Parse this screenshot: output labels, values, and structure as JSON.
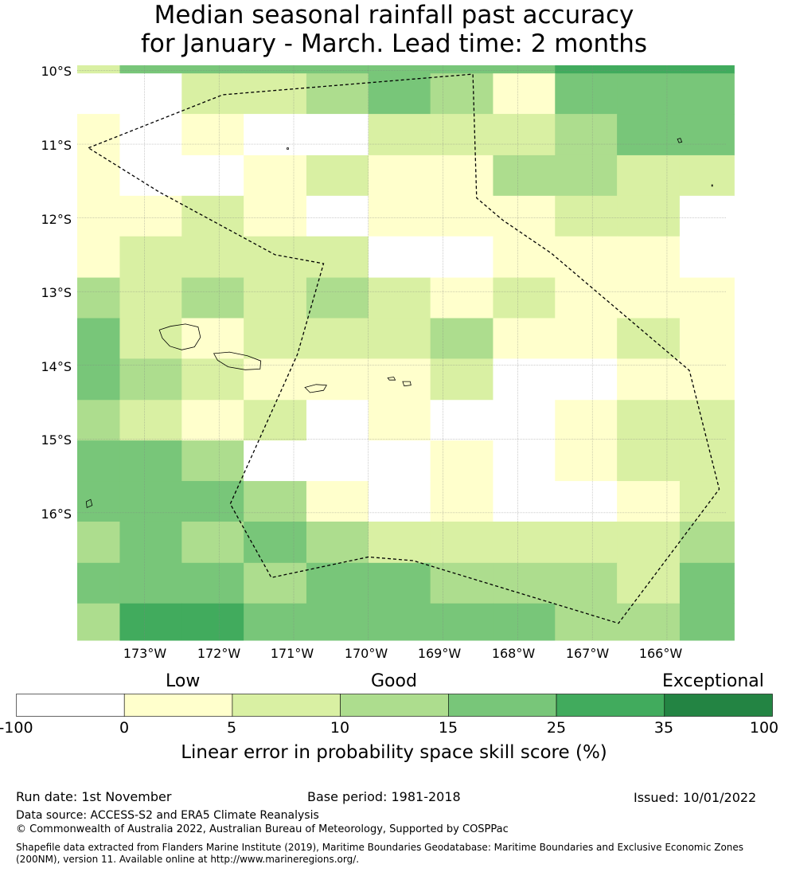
{
  "title": {
    "line1": "Median seasonal rainfall past accuracy",
    "line2": "for January - March. Lead time: 2 months"
  },
  "colors": {
    "bins": [
      "#ffffff",
      "#ffffcc",
      "#d9f0a3",
      "#addd8e",
      "#78c679",
      "#41ab5d",
      "#238443"
    ],
    "coastline": "#000000",
    "eez_boundary": "#000000",
    "gridline": "#808080"
  },
  "map": {
    "lat_labels": [
      "10°S",
      "11°S",
      "12°S",
      "13°S",
      "14°S",
      "15°S",
      "16°S"
    ],
    "lon_labels": [
      "173°W",
      "172°W",
      "171°W",
      "170°W",
      "169°W",
      "168°W",
      "167°W",
      "166°W"
    ],
    "lon_range": [
      -173.9,
      -165.2
    ],
    "lat_range": [
      -17.73,
      -9.93
    ],
    "gridlines": true,
    "eez_boundary": {
      "style": "dashed",
      "path": [
        [
          -173.75,
          -11.05
        ],
        [
          -171.95,
          -10.33
        ],
        [
          -168.6,
          -10.05
        ],
        [
          -168.55,
          -11.73
        ],
        [
          -168.2,
          -12.03
        ],
        [
          -167.55,
          -12.48
        ],
        [
          -165.7,
          -14.07
        ],
        [
          -165.3,
          -15.68
        ],
        [
          -166.65,
          -17.5
        ],
        [
          -169.4,
          -16.65
        ],
        [
          -170.0,
          -16.6
        ],
        [
          -171.3,
          -16.88
        ],
        [
          -171.85,
          -15.88
        ],
        [
          -170.95,
          -13.85
        ],
        [
          -170.6,
          -12.62
        ],
        [
          -171.25,
          -12.5
        ],
        [
          -172.8,
          -11.65
        ],
        [
          -173.75,
          -11.05
        ]
      ]
    },
    "islands": [
      {
        "name": "Savai'i",
        "path": [
          [
            -172.8,
            -13.52
          ],
          [
            -172.65,
            -13.47
          ],
          [
            -172.45,
            -13.44
          ],
          [
            -172.28,
            -13.48
          ],
          [
            -172.25,
            -13.62
          ],
          [
            -172.33,
            -13.75
          ],
          [
            -172.5,
            -13.79
          ],
          [
            -172.66,
            -13.74
          ],
          [
            -172.76,
            -13.63
          ],
          [
            -172.8,
            -13.52
          ]
        ]
      },
      {
        "name": "Upolu",
        "path": [
          [
            -172.07,
            -13.84
          ],
          [
            -171.86,
            -13.82
          ],
          [
            -171.62,
            -13.87
          ],
          [
            -171.44,
            -13.94
          ],
          [
            -171.45,
            -14.05
          ],
          [
            -171.65,
            -14.06
          ],
          [
            -171.88,
            -14.02
          ],
          [
            -172.02,
            -13.93
          ],
          [
            -172.07,
            -13.84
          ]
        ]
      },
      {
        "name": "Tutuila",
        "path": [
          [
            -170.85,
            -14.3
          ],
          [
            -170.7,
            -14.26
          ],
          [
            -170.56,
            -14.27
          ],
          [
            -170.6,
            -14.34
          ],
          [
            -170.78,
            -14.37
          ],
          [
            -170.85,
            -14.3
          ]
        ]
      },
      {
        "name": "Ofu-Olosega",
        "path": [
          [
            -169.74,
            -14.17
          ],
          [
            -169.66,
            -14.16
          ],
          [
            -169.64,
            -14.2
          ],
          [
            -169.72,
            -14.2
          ],
          [
            -169.74,
            -14.17
          ]
        ]
      },
      {
        "name": "Ta'u",
        "path": [
          [
            -169.54,
            -14.22
          ],
          [
            -169.44,
            -14.22
          ],
          [
            -169.43,
            -14.27
          ],
          [
            -169.52,
            -14.28
          ],
          [
            -169.54,
            -14.22
          ]
        ]
      },
      {
        "name": "Swains",
        "path": [
          [
            -171.09,
            -11.05
          ],
          [
            -171.07,
            -11.05
          ],
          [
            -171.07,
            -11.07
          ],
          [
            -171.09,
            -11.07
          ],
          [
            -171.09,
            -11.05
          ]
        ]
      },
      {
        "name": "Fakaofo",
        "path": [
          [
            -165.86,
            -10.93
          ],
          [
            -165.82,
            -10.92
          ],
          [
            -165.8,
            -10.97
          ],
          [
            -165.84,
            -10.98
          ],
          [
            -165.86,
            -10.93
          ]
        ]
      },
      {
        "name": "Nukunonu",
        "path": [
          [
            -165.4,
            -11.55
          ],
          [
            -165.39,
            -11.55
          ],
          [
            -165.39,
            -11.57
          ],
          [
            -165.4,
            -11.57
          ],
          [
            -165.4,
            -11.55
          ]
        ]
      },
      {
        "name": "Wallis-Futuna islet",
        "path": [
          [
            -173.78,
            -15.85
          ],
          [
            -173.72,
            -15.82
          ],
          [
            -173.7,
            -15.9
          ],
          [
            -173.77,
            -15.93
          ],
          [
            -173.78,
            -15.85
          ]
        ]
      }
    ],
    "skill_grid": {
      "col_edges_lon": [
        -173.9,
        -173.33,
        -172.5,
        -171.67,
        -170.83,
        -170.0,
        -169.17,
        -168.33,
        -167.5,
        -166.67,
        -165.83,
        -165.1
      ],
      "row_edges_lat": [
        -9.93,
        -10.04,
        -10.59,
        -11.15,
        -11.7,
        -12.25,
        -12.81,
        -13.36,
        -13.91,
        -14.47,
        -15.02,
        -15.57,
        -16.12,
        -16.68,
        -17.23,
        -17.73
      ],
      "bins": [
        [
          2,
          4,
          4,
          4,
          4,
          4,
          4,
          4,
          5,
          5,
          5
        ],
        [
          0,
          0,
          2,
          2,
          3,
          4,
          3,
          1,
          4,
          4,
          4
        ],
        [
          1,
          0,
          1,
          0,
          0,
          2,
          2,
          2,
          3,
          4,
          4
        ],
        [
          1,
          0,
          0,
          1,
          2,
          1,
          1,
          3,
          3,
          2,
          2
        ],
        [
          1,
          1,
          2,
          1,
          0,
          1,
          1,
          1,
          2,
          2,
          0
        ],
        [
          1,
          2,
          2,
          2,
          2,
          0,
          0,
          1,
          1,
          1,
          0
        ],
        [
          3,
          2,
          3,
          2,
          3,
          2,
          1,
          2,
          1,
          1,
          1
        ],
        [
          4,
          2,
          1,
          2,
          2,
          2,
          3,
          1,
          1,
          2,
          1
        ],
        [
          4,
          3,
          2,
          1,
          1,
          1,
          2,
          0,
          0,
          1,
          1
        ],
        [
          3,
          2,
          1,
          2,
          0,
          1,
          0,
          0,
          1,
          2,
          2
        ],
        [
          4,
          4,
          3,
          0,
          0,
          0,
          1,
          0,
          1,
          2,
          2
        ],
        [
          4,
          4,
          4,
          3,
          1,
          0,
          1,
          0,
          0,
          1,
          2
        ],
        [
          3,
          4,
          3,
          4,
          3,
          2,
          2,
          2,
          2,
          2,
          3
        ],
        [
          4,
          4,
          4,
          3,
          4,
          4,
          3,
          3,
          3,
          2,
          4
        ],
        [
          3,
          5,
          5,
          4,
          4,
          4,
          4,
          4,
          3,
          3,
          4
        ]
      ]
    }
  },
  "legend": {
    "categories": [
      "Low",
      "Good",
      "Exceptional"
    ],
    "ticks": [
      "-100",
      "0",
      "5",
      "10",
      "15",
      "25",
      "35",
      "100"
    ],
    "title": "Linear error in probability space skill score (%)"
  },
  "footer": {
    "run_date": "Run date: 1st November",
    "base_period": "Base period: 1981-2018",
    "issued": "Issued: 10/01/2022",
    "data_source": "Data source: ACCESS-S2 and ERA5 Climate Reanalysis",
    "copyright": "© Commonwealth of Australia 2022, Australian Bureau of Meteorology, Supported by COSPPac",
    "shapefile_note": "Shapefile data extracted from Flanders Marine Institute (2019), Maritime Boundaries Geodatabase: Maritime Boundaries and Exclusive Economic Zones (200NM), version 11. Available online at http://www.marineregions.org/."
  }
}
